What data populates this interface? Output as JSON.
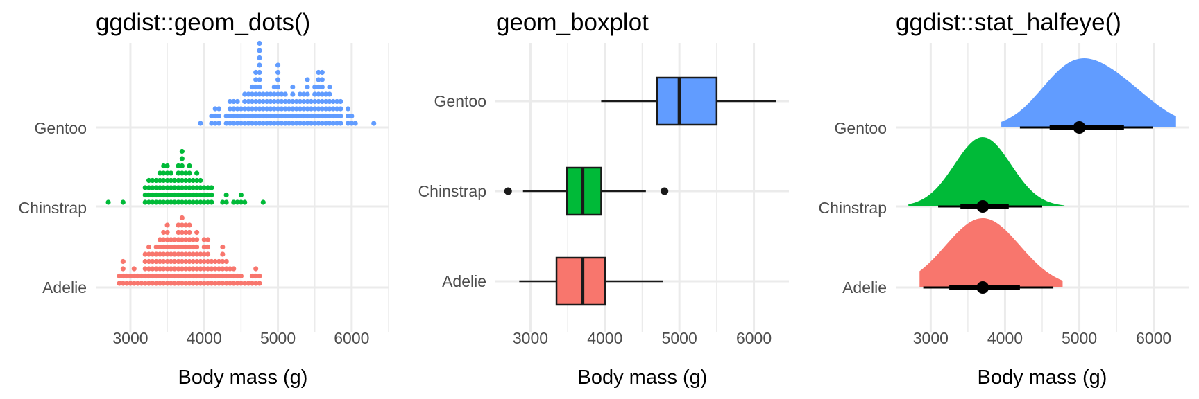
{
  "chart_data": [
    {
      "type": "dotplot",
      "title": "ggdist::geom_dots()",
      "xlabel": "Body mass (g)",
      "xlim": [
        2530,
        6500
      ],
      "xticks": [
        3000,
        4000,
        5000,
        6000
      ],
      "categories": [
        "Adelie",
        "Chinstrap",
        "Gentoo"
      ],
      "colors": {
        "Adelie": "#f8766d",
        "Chinstrap": "#00ba38",
        "Gentoo": "#619cff"
      },
      "bin_width": 50,
      "bin_counts": {
        "Gentoo": [
          [
            3950,
            1
          ],
          [
            4100,
            2
          ],
          [
            4150,
            3
          ],
          [
            4200,
            3
          ],
          [
            4300,
            2
          ],
          [
            4350,
            4
          ],
          [
            4400,
            4
          ],
          [
            4450,
            4
          ],
          [
            4500,
            3
          ],
          [
            4550,
            5
          ],
          [
            4600,
            5
          ],
          [
            4650,
            6
          ],
          [
            4700,
            8
          ],
          [
            4750,
            12
          ],
          [
            4800,
            5
          ],
          [
            4850,
            5
          ],
          [
            4900,
            5
          ],
          [
            4950,
            6
          ],
          [
            5000,
            9
          ],
          [
            5050,
            5
          ],
          [
            5100,
            5
          ],
          [
            5150,
            4
          ],
          [
            5200,
            6
          ],
          [
            5250,
            4
          ],
          [
            5300,
            5
          ],
          [
            5350,
            5
          ],
          [
            5400,
            7
          ],
          [
            5450,
            4
          ],
          [
            5500,
            6
          ],
          [
            5550,
            8
          ],
          [
            5600,
            8
          ],
          [
            5650,
            5
          ],
          [
            5700,
            6
          ],
          [
            5750,
            4
          ],
          [
            5800,
            4
          ],
          [
            5850,
            4
          ],
          [
            5950,
            3
          ],
          [
            6000,
            2
          ],
          [
            6050,
            1
          ],
          [
            6300,
            1
          ]
        ],
        "Chinstrap": [
          [
            2700,
            1
          ],
          [
            2900,
            1
          ],
          [
            3200,
            3
          ],
          [
            3250,
            4
          ],
          [
            3300,
            4
          ],
          [
            3350,
            4
          ],
          [
            3400,
            5
          ],
          [
            3450,
            6
          ],
          [
            3500,
            6
          ],
          [
            3550,
            5
          ],
          [
            3600,
            4
          ],
          [
            3650,
            6
          ],
          [
            3700,
            8
          ],
          [
            3750,
            5
          ],
          [
            3800,
            6
          ],
          [
            3850,
            4
          ],
          [
            3900,
            5
          ],
          [
            3950,
            4
          ],
          [
            4000,
            3
          ],
          [
            4050,
            3
          ],
          [
            4100,
            3
          ],
          [
            4250,
            1
          ],
          [
            4300,
            2
          ],
          [
            4400,
            1
          ],
          [
            4450,
            1
          ],
          [
            4500,
            2
          ],
          [
            4550,
            1
          ],
          [
            4800,
            1
          ]
        ],
        "Adelie": [
          [
            2850,
            2
          ],
          [
            2900,
            4
          ],
          [
            2950,
            2
          ],
          [
            3000,
            2
          ],
          [
            3050,
            3
          ],
          [
            3100,
            2
          ],
          [
            3150,
            2
          ],
          [
            3200,
            5
          ],
          [
            3250,
            6
          ],
          [
            3300,
            5
          ],
          [
            3350,
            6
          ],
          [
            3400,
            7
          ],
          [
            3450,
            8
          ],
          [
            3500,
            9
          ],
          [
            3550,
            7
          ],
          [
            3600,
            7
          ],
          [
            3650,
            9
          ],
          [
            3700,
            10
          ],
          [
            3750,
            9
          ],
          [
            3800,
            9
          ],
          [
            3850,
            7
          ],
          [
            3900,
            8
          ],
          [
            3950,
            5
          ],
          [
            4000,
            7
          ],
          [
            4050,
            7
          ],
          [
            4100,
            4
          ],
          [
            4150,
            4
          ],
          [
            4200,
            4
          ],
          [
            4250,
            6
          ],
          [
            4300,
            4
          ],
          [
            4350,
            3
          ],
          [
            4400,
            3
          ],
          [
            4450,
            2
          ],
          [
            4500,
            2
          ],
          [
            4550,
            1
          ],
          [
            4600,
            1
          ],
          [
            4650,
            2
          ],
          [
            4700,
            3
          ],
          [
            4750,
            2
          ]
        ]
      }
    },
    {
      "type": "boxplot",
      "title": "geom_boxplot",
      "xlabel": "Body mass (g)",
      "xlim": [
        2530,
        6470
      ],
      "xticks": [
        3000,
        4000,
        5000,
        6000
      ],
      "categories": [
        "Adelie",
        "Chinstrap",
        "Gentoo"
      ],
      "series": [
        {
          "name": "Adelie",
          "color": "#f8766d",
          "whisker_low": 2850,
          "q1": 3350,
          "median": 3700,
          "q3": 4000,
          "whisker_high": 4775,
          "outliers": []
        },
        {
          "name": "Chinstrap",
          "color": "#00ba38",
          "whisker_low": 2900,
          "q1": 3488,
          "median": 3700,
          "q3": 3950,
          "whisker_high": 4550,
          "outliers": [
            2700,
            4800
          ]
        },
        {
          "name": "Gentoo",
          "color": "#619cff",
          "whisker_low": 3950,
          "q1": 4700,
          "median": 5000,
          "q3": 5500,
          "whisker_high": 6300,
          "outliers": []
        }
      ]
    },
    {
      "type": "halfeye",
      "title": "ggdist::stat_halfeye()",
      "xlabel": "Body mass (g)",
      "xlim": [
        2530,
        6470
      ],
      "xticks": [
        3000,
        4000,
        5000,
        6000
      ],
      "categories": [
        "Adelie",
        "Chinstrap",
        "Gentoo"
      ],
      "series": [
        {
          "name": "Adelie",
          "color": "#f8766d",
          "range": [
            2850,
            4775
          ],
          "density_mean": 3700,
          "density_sd": 500,
          "density_skew": 0,
          "point": 3700,
          "interval_66": [
            3250,
            4200
          ],
          "interval_95": [
            2900,
            4650
          ]
        },
        {
          "name": "Chinstrap",
          "color": "#00ba38",
          "range": [
            2700,
            4800
          ],
          "density_mean": 3700,
          "density_sd": 380,
          "density_skew": 0,
          "point": 3700,
          "interval_66": [
            3400,
            4050
          ],
          "interval_95": [
            3100,
            4500
          ]
        },
        {
          "name": "Gentoo",
          "color": "#619cff",
          "range": [
            3950,
            6300
          ],
          "density_mean": 5050,
          "density_sd": 620,
          "density_skew": 1,
          "point": 5000,
          "interval_66": [
            4600,
            5600
          ],
          "interval_95": [
            4200,
            5990
          ]
        }
      ]
    }
  ]
}
